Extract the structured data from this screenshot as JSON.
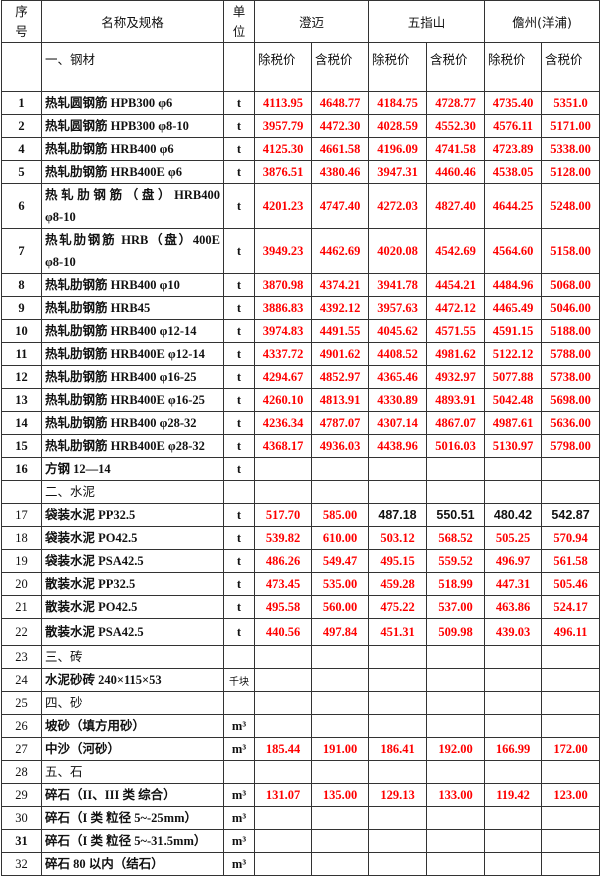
{
  "header": {
    "no": "序号",
    "name": "名称及规格",
    "unit": "单位",
    "regions": [
      "澄迈",
      "五指山",
      "儋州(洋浦)"
    ],
    "price_ex_tax": "除税价",
    "price_inc_tax": "含税价",
    "first_section": "一、钢材"
  },
  "value_color": "#ff0000",
  "rows": [
    {
      "no": "1",
      "name": "热轧圆钢筋 HPB300 φ6",
      "unit": "t",
      "values": [
        "4113.95",
        "4648.77",
        "4184.75",
        "4728.77",
        "4735.40",
        "5351.0"
      ]
    },
    {
      "no": "2",
      "name": "热轧圆钢筋 HPB300 φ8-10",
      "unit": "t",
      "values": [
        "3957.79",
        "4472.30",
        "4028.59",
        "4552.30",
        "4576.11",
        "5171.00"
      ]
    },
    {
      "no": "4",
      "name": "热轧肋钢筋 HRB400 φ6",
      "unit": "t",
      "values": [
        "4125.30",
        "4661.58",
        "4196.09",
        "4741.58",
        "4723.89",
        "5338.00"
      ]
    },
    {
      "no": "5",
      "name": "热轧肋钢筋 HRB400E φ6",
      "unit": "t",
      "values": [
        "3876.51",
        "4380.46",
        "3947.31",
        "4460.46",
        "4538.05",
        "5128.00"
      ]
    },
    {
      "no": "6",
      "name": "热 轧 肋 钢 筋 （ 盘 ） HRB400 φ8-10",
      "unit": "t",
      "values": [
        "4201.23",
        "4747.40",
        "4272.03",
        "4827.40",
        "4644.25",
        "5248.00"
      ],
      "dbl": true
    },
    {
      "no": "7",
      "name": "热轧肋钢筋 HRB（盘）400E φ8-10",
      "unit": "t",
      "values": [
        "3949.23",
        "4462.69",
        "4020.08",
        "4542.69",
        "4564.60",
        "5158.00"
      ],
      "dbl": true
    },
    {
      "no": "8",
      "name": "热轧肋钢筋 HRB400 φ10",
      "unit": "t",
      "values": [
        "3870.98",
        "4374.21",
        "3941.78",
        "4454.21",
        "4484.96",
        "5068.00"
      ]
    },
    {
      "no": "9",
      "name": "热轧肋钢筋 HRB45",
      "unit": "t",
      "values": [
        "3886.83",
        "4392.12",
        "3957.63",
        "4472.12",
        "4465.49",
        "5046.00"
      ]
    },
    {
      "no": "10",
      "name": "热轧肋钢筋 HRB400 φ12-14",
      "unit": "t",
      "values": [
        "3974.83",
        "4491.55",
        "4045.62",
        "4571.55",
        "4591.15",
        "5188.00"
      ]
    },
    {
      "no": "11",
      "name": "热轧肋钢筋 HRB400E φ12-14",
      "unit": "t",
      "values": [
        "4337.72",
        "4901.62",
        "4408.52",
        "4981.62",
        "5122.12",
        "5788.00"
      ]
    },
    {
      "no": "12",
      "name": "热轧肋钢筋 HRB400 φ16-25",
      "unit": "t",
      "values": [
        "4294.67",
        "4852.97",
        "4365.46",
        "4932.97",
        "5077.88",
        "5738.00"
      ]
    },
    {
      "no": "13",
      "name": "热轧肋钢筋 HRB400E φ16-25",
      "unit": "t",
      "values": [
        "4260.10",
        "4813.91",
        "4330.89",
        "4893.91",
        "5042.48",
        "5698.00"
      ]
    },
    {
      "no": "14",
      "name": "热轧肋钢筋 HRB400 φ28-32",
      "unit": "t",
      "values": [
        "4236.34",
        "4787.07",
        "4307.14",
        "4867.07",
        "4987.61",
        "5636.00"
      ]
    },
    {
      "no": "15",
      "name": "热轧肋钢筋 HRB400E φ28-32",
      "unit": "t",
      "values": [
        "4368.17",
        "4936.03",
        "4438.96",
        "5016.03",
        "5130.97",
        "5798.00"
      ]
    },
    {
      "no": "16",
      "name": "方钢 12—14",
      "unit": "t",
      "values": [
        "",
        "",
        "",
        "",
        "",
        ""
      ]
    },
    {
      "no": "",
      "name": "二、水泥",
      "unit": "",
      "values": [
        "",
        "",
        "",
        "",
        "",
        ""
      ],
      "section": true
    },
    {
      "no": "17",
      "name": "袋装水泥 PP32.5",
      "unit": "t",
      "values": [
        "517.70",
        "585.00",
        "487.18",
        "550.51",
        "480.42",
        "542.87"
      ],
      "dark": [
        2,
        3,
        4,
        5
      ],
      "plain": true
    },
    {
      "no": "18",
      "name": "袋装水泥 PO42.5",
      "unit": "t",
      "values": [
        "539.82",
        "610.00",
        "503.12",
        "568.52",
        "505.25",
        "570.94"
      ],
      "plain": true
    },
    {
      "no": "19",
      "name": "袋装水泥 PSA42.5",
      "unit": "t",
      "values": [
        "486.26",
        "549.47",
        "495.15",
        "559.52",
        "496.97",
        "561.58"
      ],
      "plain": true
    },
    {
      "no": "20",
      "name": "散装水泥 PP32.5",
      "unit": "t",
      "values": [
        "473.45",
        "535.00",
        "459.28",
        "518.99",
        "447.31",
        "505.46"
      ],
      "plain": true
    },
    {
      "no": "21",
      "name": "散装水泥 PO42.5",
      "unit": "t",
      "values": [
        "495.58",
        "560.00",
        "475.22",
        "537.00",
        "463.86",
        "524.17"
      ],
      "plain": true
    },
    {
      "no": "22",
      "name": "散装水泥 PSA42.5",
      "unit": "t",
      "values": [
        "440.56",
        "497.84",
        "451.31",
        "509.98",
        "439.03",
        "496.11"
      ],
      "plain": true,
      "tall": true
    },
    {
      "no": "23",
      "name": "三、砖",
      "unit": "",
      "values": [
        "",
        "",
        "",
        "",
        "",
        ""
      ],
      "section": true,
      "plain": true
    },
    {
      "no": "24",
      "name": "水泥砂砖 240×115×53",
      "unit": "千块",
      "values": [
        "",
        "",
        "",
        "",
        "",
        ""
      ],
      "plain": true,
      "smallunit": true
    },
    {
      "no": "25",
      "name": "四、砂",
      "unit": "",
      "values": [
        "",
        "",
        "",
        "",
        "",
        ""
      ],
      "section": true,
      "plain": true
    },
    {
      "no": "26",
      "name": "坡砂（填方用砂）",
      "unit": "m³",
      "values": [
        "",
        "",
        "",
        "",
        "",
        ""
      ],
      "plain": true
    },
    {
      "no": "27",
      "name": "中沙（河砂）",
      "unit": "m³",
      "values": [
        "185.44",
        "191.00",
        "186.41",
        "192.00",
        "166.99",
        "172.00"
      ],
      "plain": true
    },
    {
      "no": "28",
      "name": "五、石",
      "unit": "",
      "values": [
        "",
        "",
        "",
        "",
        "",
        ""
      ],
      "section": true,
      "plain": true
    },
    {
      "no": "29",
      "name": "碎石（II、III 类 综合）",
      "unit": "m³",
      "values": [
        "131.07",
        "135.00",
        "129.13",
        "133.00",
        "119.42",
        "123.00"
      ],
      "plain": true
    },
    {
      "no": "30",
      "name": "碎石（I 类 粒径 5~-25mm）",
      "unit": "m³",
      "values": [
        "",
        "",
        "",
        "",
        "",
        ""
      ],
      "plain": true
    },
    {
      "no": "31",
      "name": "碎石（I 类 粒径 5~-31.5mm）",
      "unit": "m³",
      "values": [
        "",
        "",
        "",
        "",
        "",
        ""
      ]
    },
    {
      "no": "32",
      "name": "碎石 80 以内（结石）",
      "unit": "m³",
      "values": [
        "",
        "",
        "",
        "",
        "",
        ""
      ],
      "plain": true
    }
  ]
}
